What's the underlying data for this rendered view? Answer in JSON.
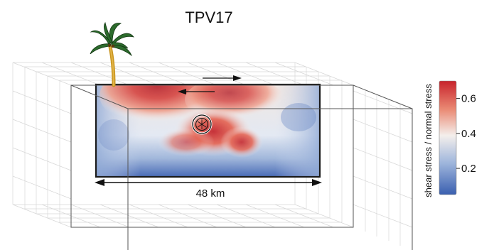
{
  "title": "TPV17",
  "scale_bar": {
    "label": "48 km"
  },
  "colorbar": {
    "label": "shear stress / normal stress",
    "ticks": [
      "0.6",
      "0.4",
      "0.2"
    ],
    "tick_values": [
      0.6,
      0.4,
      0.2
    ],
    "range": [
      0.05,
      0.7
    ],
    "colors": {
      "high": "#c8232c",
      "mid": "#f4efec",
      "low": "#3a5fb0"
    }
  },
  "icons": {
    "palm_tree": "palm-tree-icon",
    "hypocenter": "hypocenter-marker"
  },
  "fault_plane": {
    "slip_arrows": [
      "right-lateral-top",
      "left-lateral-bottom"
    ]
  }
}
